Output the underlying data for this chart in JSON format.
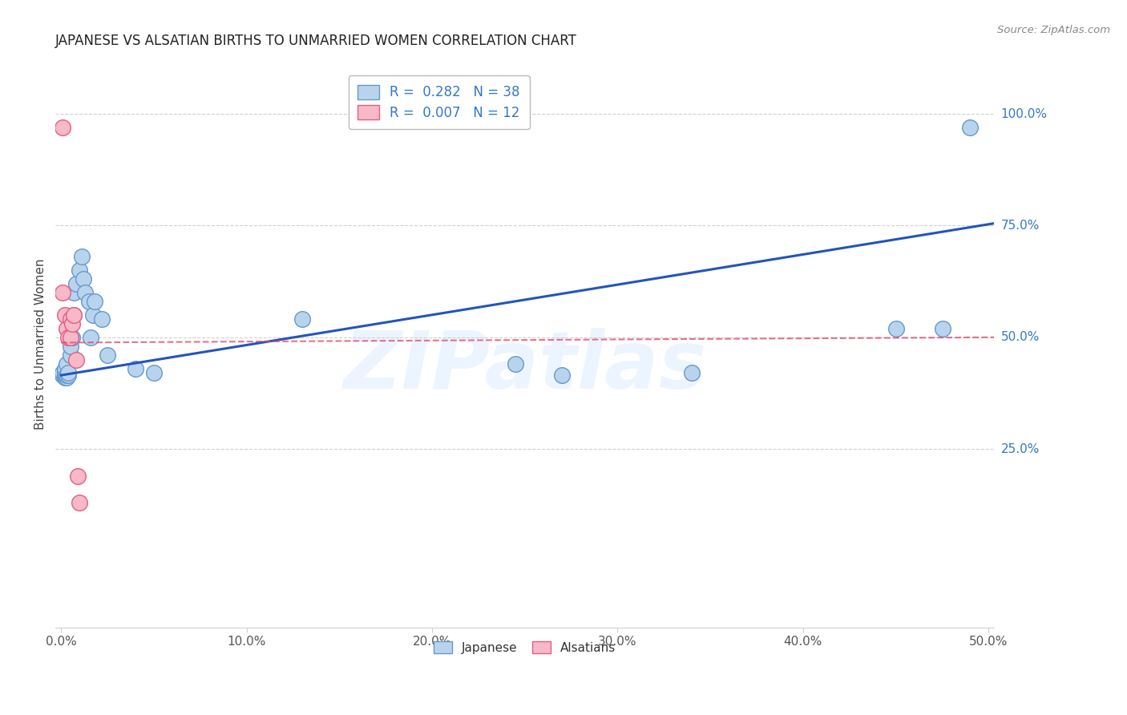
{
  "title": "JAPANESE VS ALSATIAN BIRTHS TO UNMARRIED WOMEN CORRELATION CHART",
  "source": "Source: ZipAtlas.com",
  "ylabel": "Births to Unmarried Women",
  "xlabel_ticks": [
    "0.0%",
    "10.0%",
    "20.0%",
    "30.0%",
    "40.0%",
    "50.0%"
  ],
  "xlabel_vals": [
    0.0,
    0.1,
    0.2,
    0.3,
    0.4,
    0.5
  ],
  "ylabel_ticks": [
    "25.0%",
    "50.0%",
    "75.0%",
    "100.0%"
  ],
  "ylabel_vals": [
    0.25,
    0.5,
    0.75,
    1.0
  ],
  "xlim": [
    -0.003,
    0.503
  ],
  "ylim": [
    -0.15,
    1.12
  ],
  "watermark": "ZIPatlas",
  "legend_stat": [
    {
      "label": "R =  0.282   N = 38",
      "color": "#7bafd4"
    },
    {
      "label": "R =  0.007   N = 12",
      "color": "#f4a7b3"
    }
  ],
  "legend_labels": [
    "Japanese",
    "Alsatians"
  ],
  "japanese_x": [
    0.001,
    0.001,
    0.001,
    0.002,
    0.002,
    0.002,
    0.002,
    0.002,
    0.003,
    0.003,
    0.003,
    0.004,
    0.004,
    0.005,
    0.005,
    0.006,
    0.007,
    0.007,
    0.008,
    0.01,
    0.011,
    0.012,
    0.013,
    0.015,
    0.016,
    0.017,
    0.018,
    0.022,
    0.025,
    0.04,
    0.05,
    0.13,
    0.245,
    0.27,
    0.34,
    0.45,
    0.475,
    0.49
  ],
  "japanese_y": [
    0.415,
    0.415,
    0.42,
    0.41,
    0.415,
    0.415,
    0.42,
    0.43,
    0.41,
    0.415,
    0.44,
    0.415,
    0.42,
    0.46,
    0.48,
    0.5,
    0.55,
    0.6,
    0.62,
    0.65,
    0.68,
    0.63,
    0.6,
    0.58,
    0.5,
    0.55,
    0.58,
    0.54,
    0.46,
    0.43,
    0.42,
    0.54,
    0.44,
    0.415,
    0.42,
    0.52,
    0.52,
    0.97
  ],
  "alsatian_x": [
    0.001,
    0.001,
    0.002,
    0.003,
    0.004,
    0.005,
    0.005,
    0.006,
    0.007,
    0.008,
    0.009,
    0.01
  ],
  "alsatian_y": [
    0.97,
    0.6,
    0.55,
    0.52,
    0.5,
    0.54,
    0.5,
    0.53,
    0.55,
    0.45,
    0.19,
    0.13
  ],
  "blue_line_x": [
    0.0,
    0.503
  ],
  "blue_line_y": [
    0.415,
    0.755
  ],
  "pink_line_x": [
    0.0,
    0.503
  ],
  "pink_line_y": [
    0.488,
    0.5
  ],
  "dot_color_japanese": "#b8d4ed",
  "dot_color_alsatian": "#f7b8c8",
  "dot_edge_japanese": "#6699cc",
  "dot_edge_alsatian": "#e06080",
  "line_color_blue": "#2255bb",
  "line_color_pink": "#dd4466",
  "grid_color": "#d0d0d0",
  "title_color": "#222222",
  "axis_label_color": "#444444",
  "tick_label_color_x": "#555555",
  "tick_color_right": "#3377cc",
  "background_color": "#ffffff"
}
